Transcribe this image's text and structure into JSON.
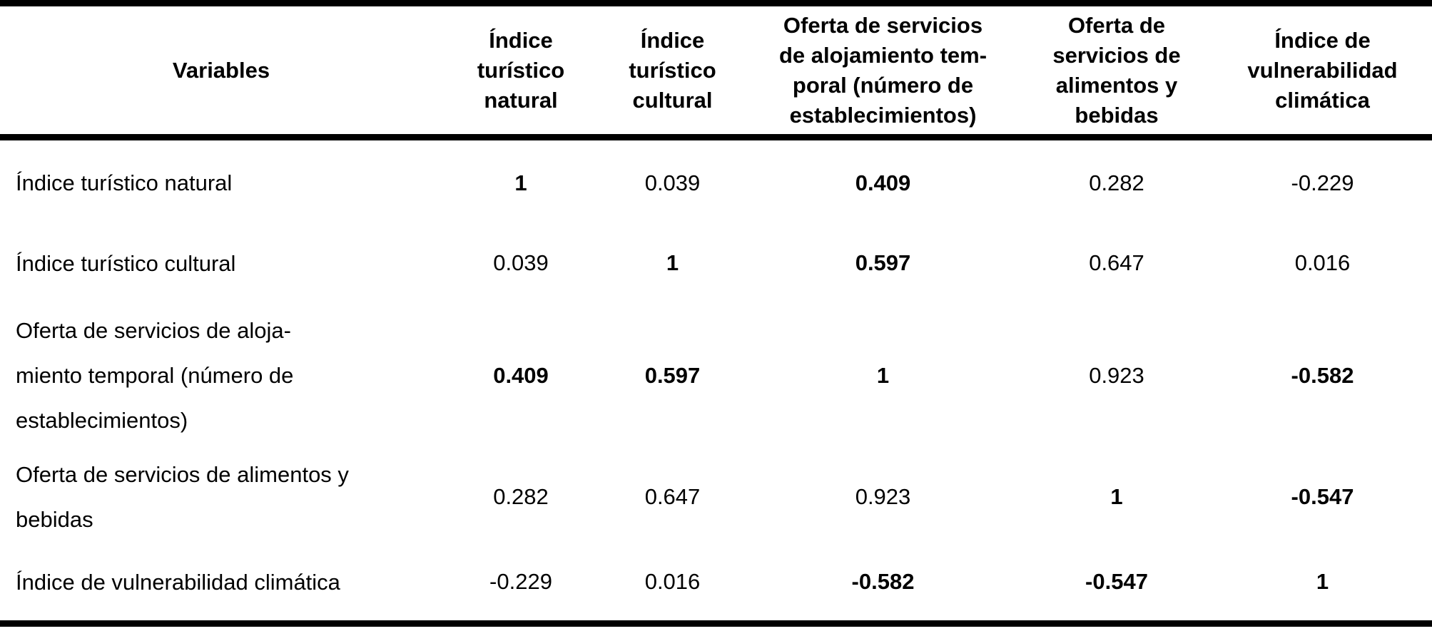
{
  "colors": {
    "background": "#ffffff",
    "text": "#000000",
    "rule": "#000000"
  },
  "table": {
    "header": {
      "variables_label": "Variables",
      "col_natural": "Índice\nturístico\nnatural",
      "col_cultural": "Índice\nturístico\ncultural",
      "col_alojamiento": "Oferta de servicios\nde alojamiento tem-\nporal (número de\nestablecimientos)",
      "col_alimentos": "Oferta de\nservicios de\nalimentos y\nbebidas",
      "col_vulnerabilidad": "Índice de\nvulnerabilidad\nclimática"
    },
    "rows": [
      {
        "label": "Índice turístico natural",
        "cells": [
          {
            "text": "1",
            "weight": "bold"
          },
          {
            "text": "0.039",
            "weight": "normal"
          },
          {
            "text": "0.409",
            "weight": "bold"
          },
          {
            "text": "0.282",
            "weight": "normal"
          },
          {
            "text": "-0.229",
            "weight": "normal"
          }
        ]
      },
      {
        "label": "Índice turístico cultural",
        "cells": [
          {
            "text": "0.039",
            "weight": "normal"
          },
          {
            "text": "1",
            "weight": "bold"
          },
          {
            "text": "0.597",
            "weight": "bold"
          },
          {
            "text": "0.647",
            "weight": "normal"
          },
          {
            "text": "0.016",
            "weight": "normal"
          }
        ]
      },
      {
        "label": "Oferta de servicios de aloja-\nmiento temporal (número de\nestablecimientos)",
        "cells": [
          {
            "text": "0.409",
            "weight": "bold"
          },
          {
            "text": "0.597",
            "weight": "bold"
          },
          {
            "text": "1",
            "weight": "bold"
          },
          {
            "text": "0.923",
            "weight": "normal"
          },
          {
            "text": "-0.582",
            "weight": "bold"
          }
        ]
      },
      {
        "label": "Oferta de servicios de alimentos y\nbebidas",
        "cells": [
          {
            "text": "0.282",
            "weight": "normal"
          },
          {
            "text": "0.647",
            "weight": "normal"
          },
          {
            "text": "0.923",
            "weight": "normal"
          },
          {
            "text": "1",
            "weight": "bold"
          },
          {
            "text": "-0.547",
            "weight": "bold"
          }
        ]
      },
      {
        "label": "Índice de vulnerabilidad climática",
        "cells": [
          {
            "text": "-0.229",
            "weight": "normal"
          },
          {
            "text": "0.016",
            "weight": "normal"
          },
          {
            "text": "-0.582",
            "weight": "bold"
          },
          {
            "text": "-0.547",
            "weight": "bold"
          },
          {
            "text": "1",
            "weight": "bold"
          }
        ]
      }
    ]
  },
  "chart_data": {
    "type": "table",
    "variables": [
      "Índice turístico natural",
      "Índice turístico cultural",
      "Oferta de servicios de alojamiento temporal (número de establecimientos)",
      "Oferta de servicios de alimentos y bebidas",
      "Índice de vulnerabilidad climática"
    ],
    "correlation_matrix": [
      [
        1,
        0.039,
        0.409,
        0.282,
        -0.229
      ],
      [
        0.039,
        1,
        0.597,
        0.647,
        0.016
      ],
      [
        0.409,
        0.597,
        1,
        0.923,
        -0.582
      ],
      [
        0.282,
        0.647,
        0.923,
        1,
        -0.547
      ],
      [
        -0.229,
        0.016,
        -0.582,
        -0.547,
        1
      ]
    ],
    "bold_mask": [
      [
        true,
        false,
        true,
        false,
        false
      ],
      [
        false,
        true,
        true,
        false,
        false
      ],
      [
        true,
        true,
        true,
        false,
        true
      ],
      [
        false,
        false,
        false,
        true,
        true
      ],
      [
        false,
        false,
        true,
        true,
        true
      ]
    ]
  }
}
